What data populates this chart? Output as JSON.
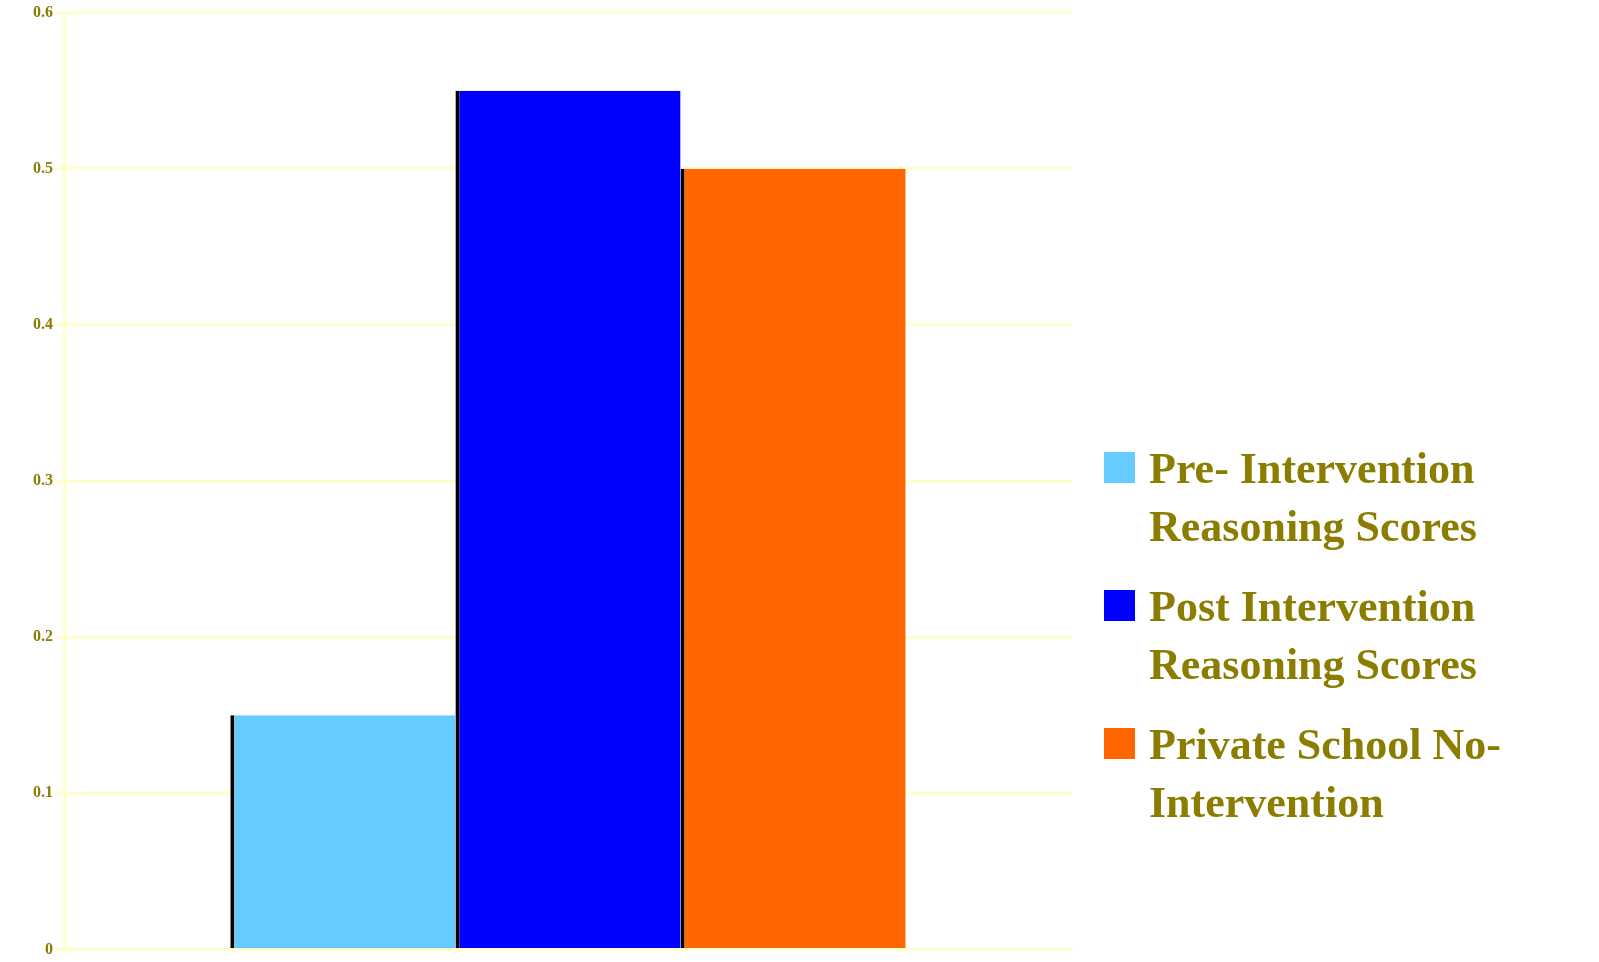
{
  "chart_data": {
    "type": "bar",
    "categories": [
      null
    ],
    "series": [
      {
        "name": "Pre- Intervention Reasoning Scores",
        "color": "#66ccff",
        "values": [
          0.15
        ]
      },
      {
        "name": "Post Intervention Reasoning Scores",
        "color": "#0000ff",
        "values": [
          0.55
        ]
      },
      {
        "name": "Private School No-Intervention",
        "color": "#ff6600",
        "values": [
          0.5
        ]
      }
    ],
    "ylim": [
      0,
      0.6
    ],
    "yticks": [
      0,
      0.1,
      0.2,
      0.3,
      0.4,
      0.5,
      0.6
    ],
    "grid": "y",
    "legend": "right"
  }
}
